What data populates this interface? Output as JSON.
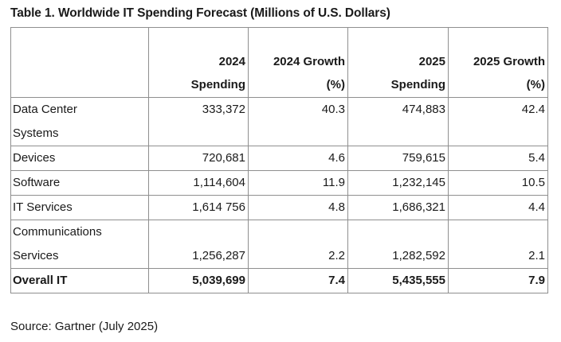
{
  "title": "Table 1. Worldwide IT Spending Forecast (Millions of U.S. Dollars)",
  "source": "Source: Gartner (July 2025)",
  "chart_data": {
    "type": "table",
    "title": "Table 1. Worldwide IT Spending Forecast (Millions of U.S. Dollars)",
    "columns": [
      {
        "line1": "",
        "line2": ""
      },
      {
        "line1": "2024",
        "line2": "Spending"
      },
      {
        "line1": "2024 Growth",
        "line2": "(%)"
      },
      {
        "line1": "2025",
        "line2": "Spending"
      },
      {
        "line1": "2025 Growth",
        "line2": "(%)"
      }
    ],
    "rows": [
      {
        "label": "Data Center Systems",
        "label_lines": [
          "Data Center",
          "Systems"
        ],
        "values": [
          "333,372",
          "40.3",
          "474,883",
          "42.4"
        ],
        "value_align": "top"
      },
      {
        "label": "Devices",
        "label_lines": [
          "Devices"
        ],
        "values": [
          "720,681",
          "4.6",
          "759,615",
          "5.4"
        ],
        "value_align": "bottom"
      },
      {
        "label": "Software",
        "label_lines": [
          "Software"
        ],
        "values": [
          "1,114,604",
          "11.9",
          "1,232,145",
          "10.5"
        ],
        "value_align": "bottom"
      },
      {
        "label": "IT Services",
        "label_lines": [
          "IT Services"
        ],
        "values": [
          "1,614 756",
          "4.8",
          "1,686,321",
          "4.4"
        ],
        "value_align": "bottom"
      },
      {
        "label": "Communications Services",
        "label_lines": [
          "Communications",
          "Services"
        ],
        "values": [
          "1,256,287",
          "2.2",
          "1,282,592",
          "2.1"
        ],
        "value_align": "bottom"
      },
      {
        "label": "Overall IT",
        "label_lines": [
          "Overall IT"
        ],
        "values": [
          "5,039,699",
          "7.4",
          "5,435,555",
          "7.9"
        ],
        "value_align": "bottom",
        "bold": true
      }
    ]
  }
}
